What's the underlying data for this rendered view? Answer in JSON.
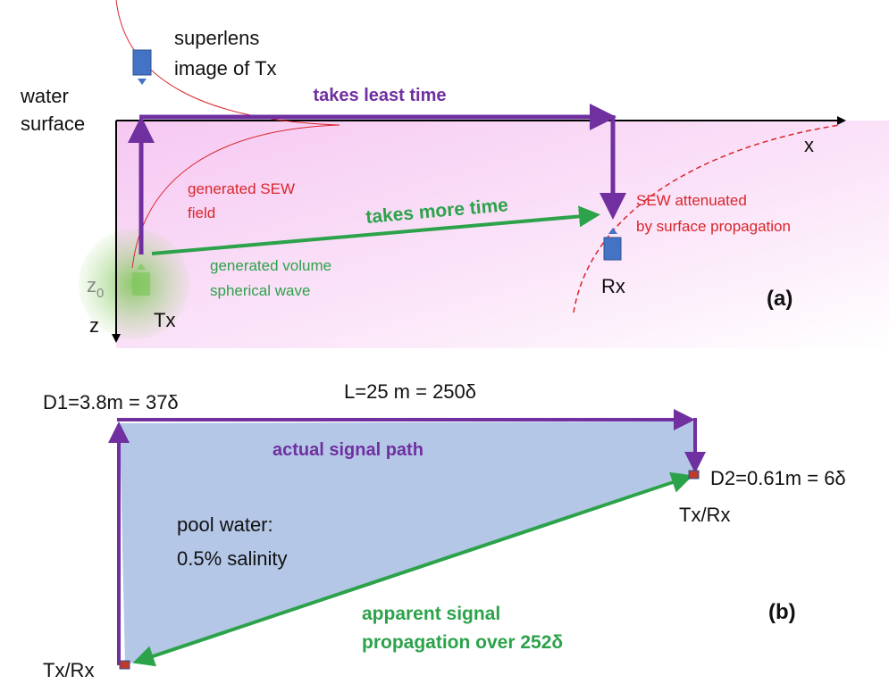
{
  "panel_a": {
    "superlens_label": [
      "superlens",
      "image of Tx"
    ],
    "water_label": [
      "water",
      "surface"
    ],
    "least_time_label": "takes least time",
    "x_axis_label": "x",
    "z_axis_label": "z",
    "sew_label": [
      "generated SEW",
      "field"
    ],
    "more_time_label": "takes more time",
    "attenuated_label": [
      "SEW attenuated",
      "by surface propagation"
    ],
    "volume_label": [
      "generated volume",
      "spherical wave"
    ],
    "z0_label": {
      "base": "z",
      "sub": "0"
    },
    "tx_label": "Tx",
    "rx_label": "Rx",
    "panel_label": "(a)"
  },
  "panel_b": {
    "d1_label": "D1=3.8m = 37δ",
    "l_label": "L=25 m = 250δ",
    "actual_path_label": "actual signal path",
    "d2_label": "D2=0.61m = 6δ",
    "txrx_right_label": "Tx/Rx",
    "pool_label": [
      "pool water:",
      "0.5% salinity"
    ],
    "apparent_label": [
      "apparent signal",
      "propagation over 252δ"
    ],
    "panel_label": "(b)",
    "txrx_left_label": "Tx/Rx"
  }
}
